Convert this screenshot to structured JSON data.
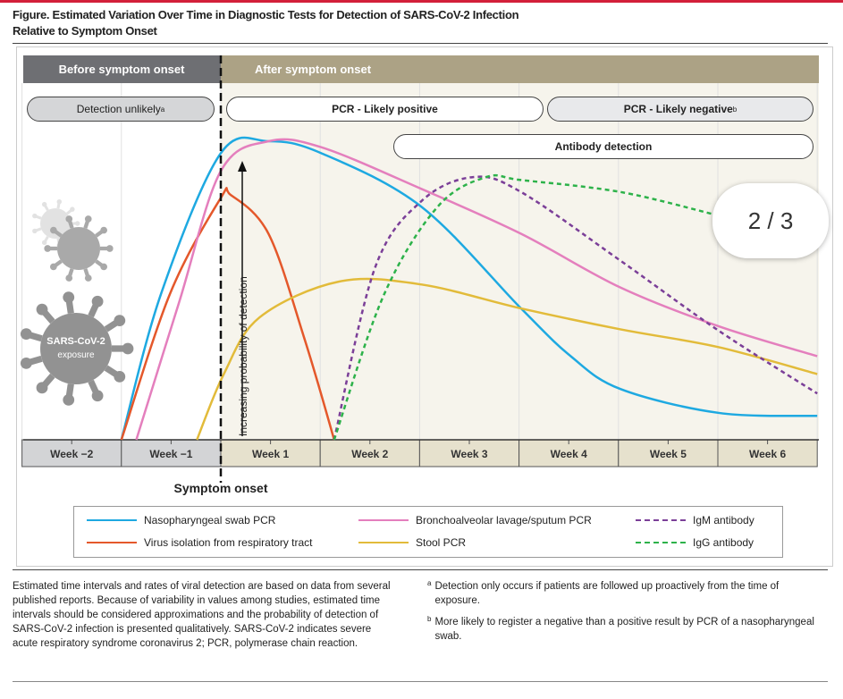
{
  "figure": {
    "title_line1": "Figure. Estimated Variation Over Time in Diagnostic Tests for Detection of SARS-CoV-2 Infection",
    "title_line2": "Relative to Symptom Onset"
  },
  "phases": {
    "before": "Before symptom onset",
    "after": "After symptom onset"
  },
  "pills": {
    "detection_unlikely": "Detection unlikely",
    "detection_unlikely_sup": "a",
    "pcr_positive": "PCR - Likely positive",
    "pcr_negative": "PCR - Likely negative",
    "pcr_negative_sup": "b",
    "antibody": "Antibody detection"
  },
  "virus_label": {
    "line1": "SARS-CoV-2",
    "line2": "exposure"
  },
  "colors": {
    "before_header": "#6e6f73",
    "after_header": "#aca285",
    "after_bg": "#f6f4ec",
    "before_axis": "#d3d4d6",
    "after_axis": "#e6e1cd"
  },
  "page_indicator": "2 / 3",
  "chart_data": {
    "type": "line",
    "title": "Figure. Estimated Variation Over Time in Diagnostic Tests for Detection of SARS-CoV-2 Infection Relative to Symptom Onset",
    "xlabel": "Symptom onset",
    "ylabel": "Increasing probability of detection",
    "x_unit": "weeks relative to symptom onset",
    "y_scale": "qualitative (0 = none, 1 = peak)",
    "categories": [
      "Week −2",
      "Week −1",
      "Week 1",
      "Week 2",
      "Week 3",
      "Week 4",
      "Week 5",
      "Week 6"
    ],
    "xlim": [
      -2,
      6
    ],
    "ylim": [
      0,
      1
    ],
    "grid": "vertical",
    "legend_placement": "bottom",
    "series": [
      {
        "name": "Nasopharyngeal swab PCR",
        "color": "#1ea9e1",
        "dash": false,
        "points": [
          [
            -1,
            0
          ],
          [
            -0.6,
            0.49
          ],
          [
            0,
            0.96
          ],
          [
            0.48,
            1
          ],
          [
            1.01,
            0.96
          ],
          [
            2.02,
            0.78
          ],
          [
            3.02,
            0.44
          ],
          [
            3.52,
            0.28
          ],
          [
            4.02,
            0.17
          ],
          [
            5.01,
            0.09
          ],
          [
            6,
            0.08
          ]
        ]
      },
      {
        "name": "Virus isolation from respiratory tract",
        "color": "#e4582b",
        "dash": false,
        "points": [
          [
            -1,
            0
          ],
          [
            -0.51,
            0.49
          ],
          [
            0,
            0.81
          ],
          [
            0.1,
            0.82
          ],
          [
            0.48,
            0.69
          ],
          [
            0.84,
            0.34
          ],
          [
            1.14,
            0
          ]
        ]
      },
      {
        "name": "Bronchoalveolar lavage/sputum PCR",
        "color": "#e47fbd",
        "dash": false,
        "points": [
          [
            -0.85,
            0
          ],
          [
            -0.42,
            0.46
          ],
          [
            0,
            0.9
          ],
          [
            0.48,
            1
          ],
          [
            1.01,
            0.98
          ],
          [
            2.02,
            0.84
          ],
          [
            3.02,
            0.69
          ],
          [
            4.02,
            0.51
          ],
          [
            5.01,
            0.38
          ],
          [
            6,
            0.28
          ]
        ]
      },
      {
        "name": "Stool PCR",
        "color": "#e2bb3a",
        "dash": false,
        "points": [
          [
            -0.24,
            0
          ],
          [
            0.03,
            0.22
          ],
          [
            0.39,
            0.41
          ],
          [
            1.19,
            0.53
          ],
          [
            2.02,
            0.52
          ],
          [
            3.02,
            0.44
          ],
          [
            4.02,
            0.37
          ],
          [
            5.01,
            0.31
          ],
          [
            6,
            0.22
          ]
        ]
      },
      {
        "name": "IgM antibody",
        "color": "#7b3f98",
        "dash": true,
        "points": [
          [
            1.14,
            0
          ],
          [
            1.55,
            0.575
          ],
          [
            2.02,
            0.8
          ],
          [
            2.54,
            0.88
          ],
          [
            3.02,
            0.83
          ],
          [
            4.02,
            0.6
          ],
          [
            5.01,
            0.365
          ],
          [
            6,
            0.155
          ]
        ]
      },
      {
        "name": "IgG antibody",
        "color": "#2db24a",
        "dash": true,
        "points": [
          [
            1.14,
            0
          ],
          [
            1.64,
            0.485
          ],
          [
            2.18,
            0.78
          ],
          [
            2.67,
            0.88
          ],
          [
            3.02,
            0.87
          ],
          [
            4.02,
            0.83
          ],
          [
            4.96,
            0.755
          ]
        ]
      }
    ]
  },
  "notes": {
    "main": "Estimated time intervals and rates of viral detection are based on data from several published reports. Because of variability in values among studies, estimated time intervals should be considered approximations and the probability of detection of SARS-CoV-2 infection is presented qualitatively. SARS-CoV-2 indicates severe acute respiratory syndrome coronavirus 2; PCR, polymerase chain reaction.",
    "a_mark": "a",
    "a": "Detection only occurs if patients are followed up proactively from the time of exposure.",
    "b_mark": "b",
    "b": "More likely to register a negative than a positive result by PCR of a nasopharyngeal swab."
  }
}
